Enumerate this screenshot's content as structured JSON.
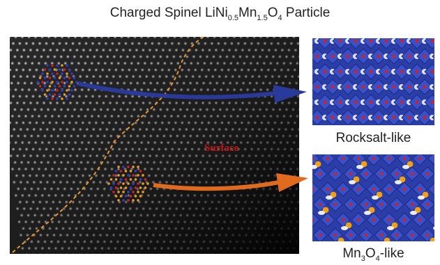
{
  "title": {
    "pre": "Charged Spinel LiNi",
    "sub1": "0.5",
    "mid": "Mn",
    "sub2": "1.5",
    "mid2": "O",
    "sub3": "4",
    "post": " Particle"
  },
  "stem": {
    "label": "Surface",
    "boundary_color": "#e8952e"
  },
  "panels": [
    {
      "label": "Rocksalt-like",
      "arrow_color": "#2a3a9a"
    },
    {
      "label_pre": "Mn",
      "label_sub": "3",
      "label_mid": "O",
      "label_sub2": "4",
      "label_post": "-like",
      "arrow_color": "#e06a1e"
    }
  ],
  "colors": {
    "polyhedra": "#2b3ea8",
    "oxygen": "#d42020",
    "cation": "#f0a020"
  }
}
